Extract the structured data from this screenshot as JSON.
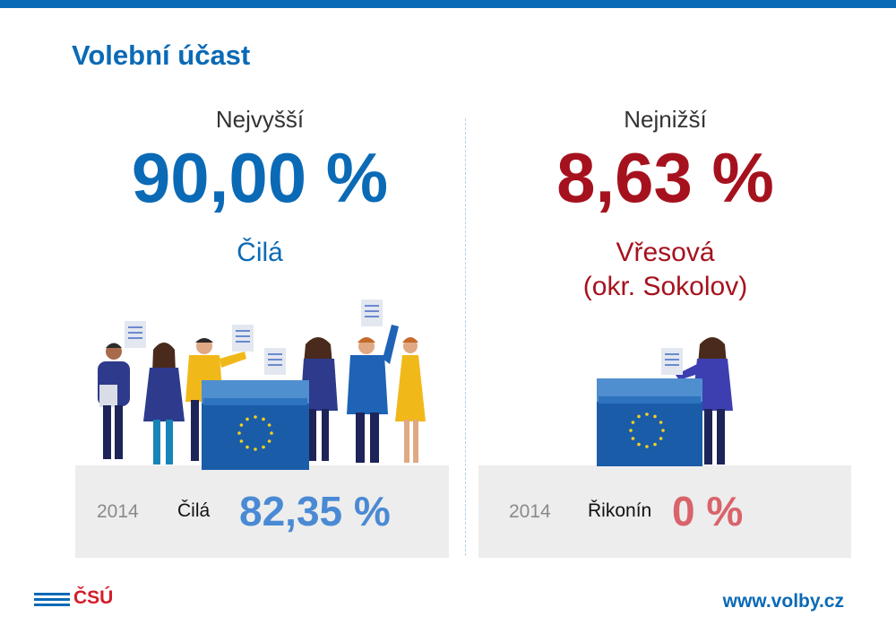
{
  "title": "Volební účast",
  "highest": {
    "label": "Nejvyšší",
    "value": "90,00 %",
    "place": "Čilá",
    "prev_year": "2014",
    "prev_place": "Čilá",
    "prev_value": "82,35 %"
  },
  "lowest": {
    "label": "Nejnižší",
    "value": "8,63 %",
    "place_line1": "Vřesová",
    "place_line2": "(okr. Sokolov)",
    "prev_year": "2014",
    "prev_place": "Řikonín",
    "prev_value": "0 %"
  },
  "footer": {
    "logo": "ČSÚ",
    "url": "www.volby.cz"
  },
  "colors": {
    "brand_blue": "#0a6ab6",
    "red": "#a5121e",
    "logo_red": "#d41d2a"
  },
  "icons": [
    "voters-illustration",
    "ballot-box-icon",
    "eu-stars-icon",
    "csu-logo-icon"
  ]
}
